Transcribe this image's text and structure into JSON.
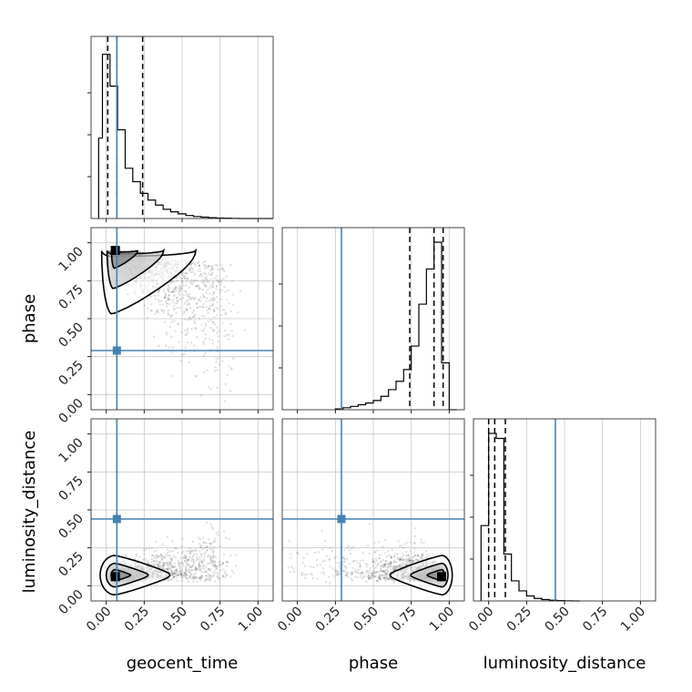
{
  "chart_data": {
    "type": "corner",
    "parameters": [
      "geocent_time",
      "phase",
      "luminosity_distance"
    ],
    "tick_labels": [
      "0.00",
      "0.25",
      "0.50",
      "0.75",
      "1.00"
    ],
    "axis_range": [
      -0.1,
      1.1
    ],
    "truths": {
      "geocent_time": 0.07,
      "phase": 0.29,
      "luminosity_distance": 0.44
    },
    "quantiles": {
      "geocent_time": [
        0.01,
        0.07,
        0.24
      ],
      "phase": [
        0.74,
        0.9,
        0.96
      ],
      "luminosity_distance": [
        0.0,
        0.04,
        0.11
      ]
    },
    "histograms": {
      "geocent_time": {
        "bins": [
          -0.05,
          -0.025,
          0.0,
          0.025,
          0.05,
          0.075,
          0.1,
          0.125,
          0.15,
          0.175,
          0.2,
          0.225,
          0.25,
          0.275,
          0.3,
          0.325,
          0.35,
          0.375,
          0.4,
          0.425,
          0.45,
          0.475,
          0.5,
          0.525,
          0.55,
          0.575,
          0.6,
          0.625,
          0.65,
          0.675,
          0.7,
          0.725,
          0.75,
          0.775,
          0.8,
          0.825,
          0.85,
          0.875,
          0.9,
          0.925,
          0.95,
          0.975,
          1.0,
          1.025,
          1.05,
          1.075
        ],
        "counts": [
          0.48,
          0.98,
          0.98,
          0.79,
          0.79,
          0.53,
          0.53,
          0.3,
          0.3,
          0.22,
          0.22,
          0.15,
          0.15,
          0.11,
          0.11,
          0.08,
          0.08,
          0.055,
          0.055,
          0.04,
          0.04,
          0.028,
          0.028,
          0.018,
          0.018,
          0.012,
          0.012,
          0.008,
          0.008,
          0.005,
          0.005,
          0.003,
          0.003,
          0.002,
          0.002,
          0.001,
          0.001,
          0.0,
          0.0,
          0.0,
          0.0,
          0.0,
          0.0,
          0.0,
          0.0,
          0.0
        ]
      },
      "phase": {
        "bins": [
          0.25,
          0.3,
          0.35,
          0.4,
          0.45,
          0.5,
          0.55,
          0.6,
          0.65,
          0.7,
          0.75,
          0.8,
          0.85,
          0.9,
          0.95,
          1.0
        ],
        "counts": [
          0.005,
          0.012,
          0.02,
          0.03,
          0.04,
          0.055,
          0.08,
          0.12,
          0.17,
          0.24,
          0.38,
          0.63,
          0.84,
          1.0,
          0.28,
          0.0
        ]
      },
      "luminosity_distance": {
        "bins": [
          -0.05,
          0.0,
          0.05,
          0.1,
          0.15,
          0.2,
          0.25,
          0.3,
          0.35,
          0.4,
          0.45,
          0.5,
          0.55
        ],
        "counts": [
          0.45,
          1.0,
          0.97,
          0.28,
          0.12,
          0.06,
          0.03,
          0.015,
          0.008,
          0.004,
          0.002,
          0.001,
          0.0
        ]
      }
    },
    "pairs": [
      {
        "x": "geocent_time",
        "y": "phase",
        "peak": [
          0.06,
          0.95
        ]
      },
      {
        "x": "geocent_time",
        "y": "luminosity_distance",
        "peak": [
          0.06,
          0.06
        ]
      },
      {
        "x": "phase",
        "y": "luminosity_distance",
        "peak": [
          0.95,
          0.06
        ]
      }
    ],
    "grid": true
  }
}
